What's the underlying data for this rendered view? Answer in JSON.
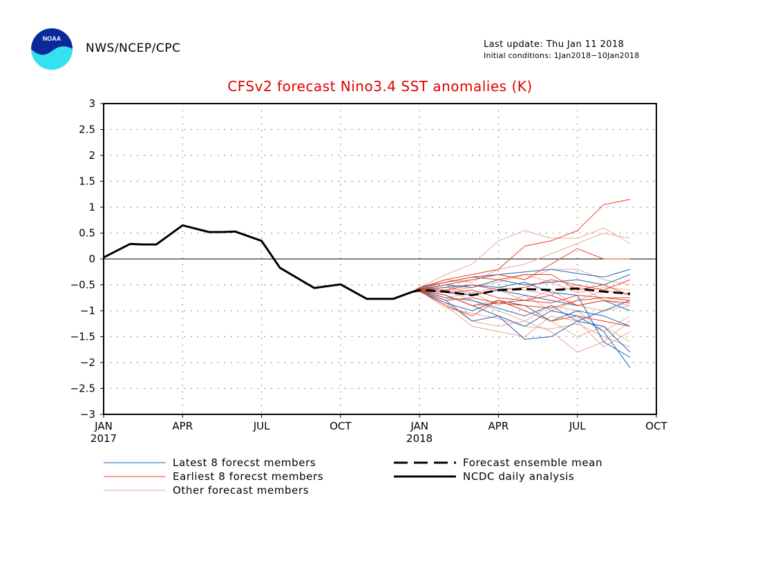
{
  "header": {
    "org": "NWS/NCEP/CPC",
    "last_update": "Last update: Thu Jan 11 2018",
    "initial_conditions": "Initial conditions: 1Jan2018−10Jan2018",
    "logo_text": "NOAA"
  },
  "chart_data": {
    "type": "line",
    "title": "CFSv2 forecast Nino3.4 SST anomalies (K)",
    "xlabel": "",
    "ylabel": "",
    "ylim": [
      -3,
      3
    ],
    "yticks": [
      "3",
      "2.5",
      "2",
      "1.5",
      "1",
      "0.5",
      "0",
      "−0.5",
      "−1",
      "−1.5",
      "−2",
      "−2.5",
      "−3"
    ],
    "yvalues": [
      3,
      2.5,
      2,
      1.5,
      1,
      0.5,
      0,
      -0.5,
      -1,
      -1.5,
      -2,
      -2.5,
      -3
    ],
    "xticks": [
      {
        "m": 0,
        "label": "JAN",
        "year": "2017"
      },
      {
        "m": 3,
        "label": "APR",
        "year": ""
      },
      {
        "m": 6,
        "label": "JUL",
        "year": ""
      },
      {
        "m": 9,
        "label": "OCT",
        "year": ""
      },
      {
        "m": 12,
        "label": "JAN",
        "year": "2018"
      },
      {
        "m": 15,
        "label": "APR",
        "year": ""
      },
      {
        "m": 18,
        "label": "JUL",
        "year": ""
      },
      {
        "m": 21,
        "label": "OCT",
        "year": ""
      }
    ],
    "x_unit_note_month_index_from_Jan2017": true,
    "grid": true,
    "colors": {
      "latest": "#1f5fb4",
      "earliest": "#e8401c",
      "other": "#e8a898",
      "mean": "#000000",
      "analysis": "#000000",
      "title": "#e00000"
    },
    "analysis": {
      "name": "NCDC daily analysis",
      "x": [
        0,
        1,
        1.5,
        2,
        3,
        4,
        4.5,
        5,
        6,
        6.7,
        8,
        9,
        10,
        11,
        11.7
      ],
      "y": [
        0.03,
        0.29,
        0.28,
        0.28,
        0.65,
        0.52,
        0.52,
        0.53,
        0.35,
        -0.17,
        -0.56,
        -0.49,
        -0.77,
        -0.77,
        -0.64
      ]
    },
    "ensemble_mean": {
      "name": "Forecast ensemble mean",
      "x": [
        11.7,
        12,
        13,
        14,
        15,
        16,
        17,
        18,
        19,
        20
      ],
      "y": [
        -0.64,
        -0.6,
        -0.63,
        -0.7,
        -0.6,
        -0.58,
        -0.6,
        -0.57,
        -0.63,
        -0.67
      ]
    },
    "latest_members": {
      "name": "Latest 8 forecst members",
      "x": [
        11.7,
        12,
        13,
        14,
        15,
        16,
        17,
        18,
        19,
        20
      ],
      "series": [
        [
          -0.64,
          -0.55,
          -0.45,
          -0.35,
          -0.3,
          -0.25,
          -0.2,
          -0.28,
          -0.35,
          -0.2
        ],
        [
          -0.64,
          -0.62,
          -0.8,
          -1.2,
          -1.1,
          -1.3,
          -1.0,
          -1.1,
          -1.4,
          -2.1
        ],
        [
          -0.64,
          -0.6,
          -0.7,
          -0.9,
          -1.1,
          -1.55,
          -1.5,
          -1.2,
          -1.3,
          -1.8
        ],
        [
          -0.64,
          -0.58,
          -0.5,
          -0.55,
          -0.4,
          -0.5,
          -0.45,
          -0.4,
          -0.5,
          -0.3
        ],
        [
          -0.64,
          -0.63,
          -0.85,
          -1.0,
          -0.8,
          -0.9,
          -1.2,
          -1.0,
          -1.1,
          -1.3
        ],
        [
          -0.64,
          -0.6,
          -0.65,
          -0.7,
          -0.6,
          -0.7,
          -0.8,
          -0.9,
          -0.8,
          -1.0
        ],
        [
          -0.64,
          -0.59,
          -0.55,
          -0.5,
          -0.55,
          -0.45,
          -0.65,
          -0.7,
          -1.6,
          -1.9
        ],
        [
          -0.64,
          -0.61,
          -0.75,
          -0.8,
          -0.95,
          -1.1,
          -0.9,
          -1.2,
          -1.0,
          -0.8
        ]
      ]
    },
    "earliest_members": {
      "name": "Earliest 8 forecst members",
      "x": [
        11.7,
        12,
        13,
        14,
        15,
        16,
        17,
        18,
        19,
        20
      ],
      "series": [
        [
          -0.64,
          -0.55,
          -0.4,
          -0.3,
          -0.2,
          0.25,
          0.35,
          0.55,
          1.05,
          1.15
        ],
        [
          -0.64,
          -0.6,
          -0.5,
          -0.4,
          -0.3,
          -0.4,
          -0.1,
          0.2,
          0.0,
          0.0
        ],
        [
          -0.64,
          -0.6,
          -0.7,
          -0.9,
          -0.85,
          -0.8,
          -0.85,
          -0.7,
          -0.75,
          -0.8
        ],
        [
          -0.64,
          -0.58,
          -0.6,
          -0.5,
          -0.6,
          -0.55,
          -0.4,
          -0.5,
          -0.6,
          -0.4
        ],
        [
          -0.64,
          -0.62,
          -0.9,
          -1.1,
          -0.8,
          -1.0,
          -1.2,
          -1.1,
          -1.2,
          -1.3
        ],
        [
          -0.64,
          -0.57,
          -0.45,
          -0.35,
          -0.4,
          -0.3,
          -0.3,
          -0.6,
          -0.5,
          -0.7
        ],
        [
          -0.64,
          -0.61,
          -0.8,
          -0.75,
          -0.85,
          -0.9,
          -0.95,
          -0.8,
          -0.75,
          -0.75
        ],
        [
          -0.64,
          -0.59,
          -0.65,
          -0.6,
          -0.75,
          -0.8,
          -0.7,
          -0.9,
          -0.8,
          -0.85
        ]
      ]
    },
    "other_members": {
      "name": "Other forecast members",
      "x": [
        11.7,
        12,
        13,
        14,
        15,
        16,
        17,
        18,
        19,
        20
      ],
      "series": [
        [
          -0.64,
          -0.55,
          -0.3,
          -0.1,
          0.35,
          0.55,
          0.4,
          0.4,
          0.6,
          0.3
        ],
        [
          -0.64,
          -0.6,
          -0.6,
          -0.8,
          -1.0,
          -1.2,
          -1.4,
          -1.8,
          -1.6,
          -1.2
        ],
        [
          -0.64,
          -0.62,
          -0.9,
          -1.3,
          -1.4,
          -1.5,
          -1.1,
          -1.2,
          -1.7,
          -1.4
        ],
        [
          -0.64,
          -0.58,
          -0.4,
          -0.45,
          -0.2,
          -0.1,
          0.1,
          0.3,
          0.5,
          0.4
        ],
        [
          -0.64,
          -0.61,
          -0.7,
          -0.9,
          -0.8,
          -1.0,
          -1.2,
          -1.5,
          -1.3,
          -1.6
        ],
        [
          -0.64,
          -0.59,
          -0.5,
          -0.7,
          -0.6,
          -0.8,
          -0.6,
          -0.9,
          -1.0,
          -0.9
        ],
        [
          -0.64,
          -0.6,
          -0.85,
          -1.2,
          -1.3,
          -1.2,
          -0.9,
          -1.0,
          -1.4,
          -1.1
        ],
        [
          -0.64,
          -0.57,
          -0.45,
          -0.4,
          -0.3,
          -0.4,
          -0.2,
          -0.2,
          -0.4,
          -0.5
        ],
        [
          -0.64,
          -0.62,
          -0.75,
          -0.65,
          -0.9,
          -0.7,
          -1.0,
          -0.8,
          -0.6,
          -0.7
        ],
        [
          -0.64,
          -0.6,
          -0.55,
          -0.65,
          -0.55,
          -0.6,
          -0.7,
          -0.5,
          -0.8,
          -0.9
        ],
        [
          -0.64,
          -0.61,
          -0.95,
          -1.05,
          -1.15,
          -1.3,
          -1.35,
          -1.25,
          -1.5,
          -1.7
        ],
        [
          -0.64,
          -0.58,
          -0.62,
          -0.55,
          -0.45,
          -0.3,
          -0.45,
          -0.65,
          -0.55,
          -0.6
        ]
      ]
    },
    "legend": {
      "placement": "bottom",
      "latest": "Latest 8 forecst members",
      "earliest": "Earliest 8 forecst members",
      "other": "Other forecast members",
      "mean": "Forecast ensemble mean",
      "analysis": "NCDC daily analysis"
    }
  }
}
